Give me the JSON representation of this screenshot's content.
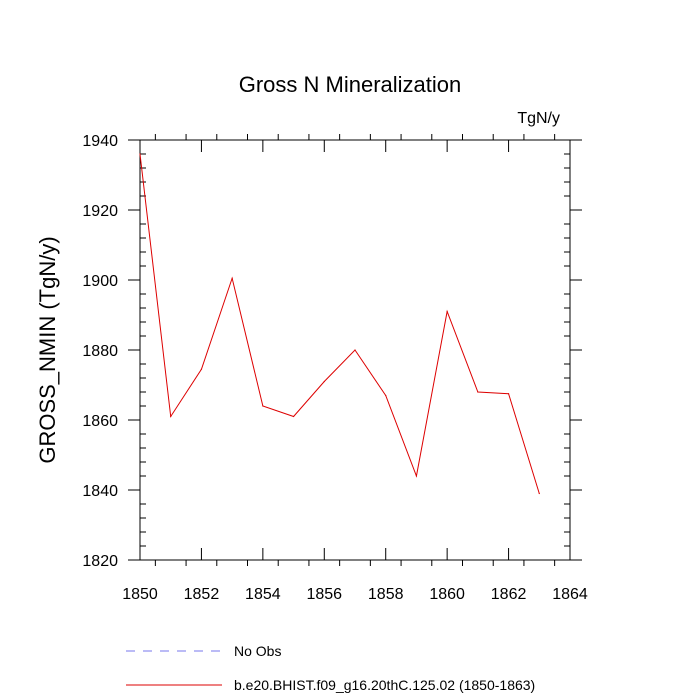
{
  "chart_data": {
    "type": "line",
    "title": "Gross N Mineralization",
    "units_label": "TgN/y",
    "ylabel": "GROSS_NMIN  (TgN/y)",
    "xlabel": "",
    "xlim": [
      1850,
      1864
    ],
    "ylim": [
      1820,
      1940
    ],
    "x_ticks": [
      1850,
      1852,
      1854,
      1856,
      1858,
      1860,
      1862,
      1864
    ],
    "y_ticks": [
      1820,
      1840,
      1860,
      1880,
      1900,
      1920,
      1940
    ],
    "x": [
      1850,
      1851,
      1852,
      1853,
      1854,
      1855,
      1856,
      1857,
      1858,
      1859,
      1860,
      1861,
      1862,
      1863
    ],
    "series": [
      {
        "name": "b.e20.BHIST.f09_g16.20thC.125.02 (1850-1863)",
        "color": "#dd0000",
        "values": [
          1936,
          1861,
          1874.5,
          1900.5,
          1864,
          1861,
          1871,
          1880,
          1867,
          1844,
          1891,
          1868,
          1867.5,
          1839
        ]
      }
    ],
    "legend": [
      {
        "label": "No Obs",
        "color": "#7777ee",
        "dash": true
      },
      {
        "label": "b.e20.BHIST.f09_g16.20thC.125.02 (1850-1863)",
        "color": "#dd0000",
        "dash": false
      }
    ],
    "legend_position": "bottom",
    "grid": false
  }
}
